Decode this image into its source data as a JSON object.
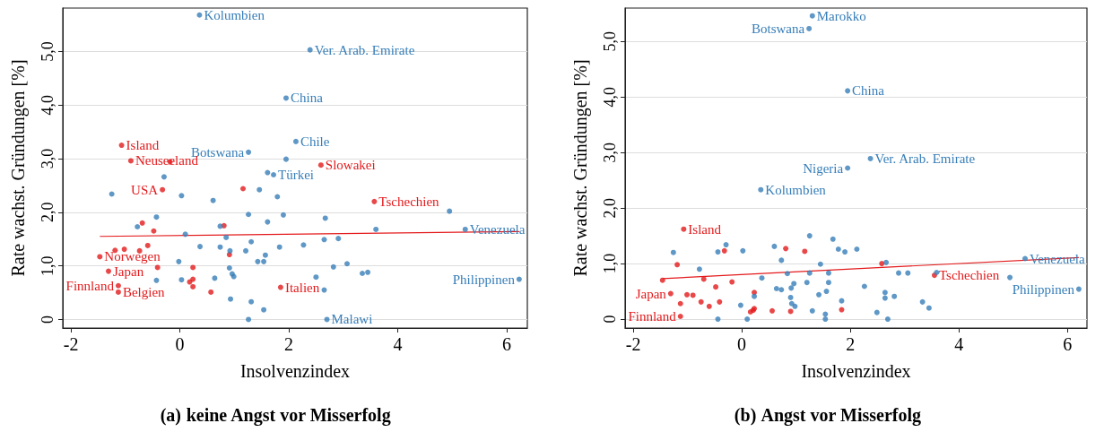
{
  "chart_data": [
    {
      "type": "scatter",
      "title": "(a) keine Angst vor Misserfolg",
      "xlabel": "Insolvenzindex",
      "ylabel": "Rate wachst. Gründungen [%]",
      "xlim": [
        -2.15,
        6.38
      ],
      "xticks": [
        -2,
        0,
        2,
        4,
        6
      ],
      "ylim": [
        -0.16,
        5.81
      ],
      "yticks": [
        0,
        {
          "value": 1,
          "label": "1,0"
        },
        {
          "value": 2,
          "label": "2,0"
        },
        {
          "value": 3,
          "label": "3,0"
        },
        {
          "value": 4,
          "label": "4,0"
        },
        {
          "value": 5,
          "label": "5,0"
        }
      ],
      "grid": "y",
      "marker": "circle",
      "series": [
        {
          "color": "#e41a1c",
          "x": [
            -1.07,
            -0.9,
            -0.18,
            -0.32,
            1.16,
            -0.69,
            -0.48,
            0.81,
            -0.59,
            -1.19,
            -1.02,
            -0.74,
            -1.47,
            0.91,
            -1.31,
            -0.41,
            0.24,
            -1.13,
            -1.13,
            0.18,
            0.24,
            0.24,
            0.57,
            1.85,
            2.59,
            3.57
          ],
          "values": [
            3.25,
            2.96,
            2.94,
            2.42,
            2.44,
            1.8,
            1.65,
            1.75,
            1.38,
            1.29,
            1.31,
            1.28,
            1.17,
            1.21,
            0.9,
            0.97,
            0.97,
            0.63,
            0.51,
            0.7,
            0.75,
            0.61,
            0.51,
            0.6,
            2.88,
            2.2
          ]
        },
        {
          "color": "#377eb8",
          "x": [
            0.36,
            1.95,
            2.13,
            1.26,
            1.95,
            1.61,
            1.72,
            -0.29,
            -1.25,
            0.03,
            0.61,
            1.46,
            1.79,
            1.26,
            1.9,
            -0.43,
            1.61,
            -0.78,
            0.74,
            0.1,
            0.85,
            1.31,
            0.37,
            0.74,
            0.92,
            1.21,
            1.83,
            2.27,
            1.57,
            1.43,
            1.54,
            -0.02,
            0.91,
            0.96,
            0.99,
            -0.43,
            0.03,
            0.64,
            0.93,
            1.31,
            1.54,
            1.26,
            2.39,
            2.67,
            2.65,
            2.91,
            3.6,
            4.95,
            5.24,
            2.82,
            3.07,
            3.35,
            3.45,
            2.5,
            2.65,
            2.7,
            6.23
          ],
          "values": [
            5.68,
            4.13,
            3.32,
            3.12,
            2.99,
            2.74,
            2.7,
            2.66,
            2.34,
            2.31,
            2.22,
            2.42,
            2.29,
            1.96,
            1.95,
            1.91,
            1.82,
            1.73,
            1.74,
            1.59,
            1.53,
            1.45,
            1.36,
            1.35,
            1.28,
            1.28,
            1.35,
            1.39,
            1.2,
            1.08,
            1.08,
            1.08,
            0.96,
            0.85,
            0.8,
            0.73,
            0.74,
            0.77,
            0.38,
            0.33,
            0.18,
            0,
            5.03,
            1.89,
            1.49,
            1.51,
            1.68,
            2.02,
            1.68,
            0.98,
            1.04,
            0.86,
            0.88,
            0.79,
            0.55,
            0,
            0.75
          ]
        },
        {
          "type": "line",
          "color": "#e41a1c",
          "marker": "none",
          "x": [
            -1.47,
            6.23
          ],
          "values": [
            1.55,
            1.64
          ]
        }
      ],
      "annotations": [
        {
          "text": "Kolumbien",
          "x": 0.36,
          "y": 5.68
        },
        {
          "text": "Ver. Arab. Emirate",
          "x": 2.39,
          "y": 5.03
        },
        {
          "text": "China",
          "x": 1.95,
          "y": 4.13
        },
        {
          "text": "Chile",
          "x": 2.13,
          "y": 3.32
        },
        {
          "text": "Botswana",
          "x": 1.26,
          "y": 3.12
        },
        {
          "text": "Türkei",
          "x": 1.72,
          "y": 2.7
        },
        {
          "text": "Island",
          "x": -1.07,
          "y": 3.25
        },
        {
          "text": "Neuseeland",
          "x": -0.9,
          "y": 2.96
        },
        {
          "text": "USA",
          "x": -0.32,
          "y": 2.42
        },
        {
          "text": "Slowakei",
          "x": 2.59,
          "y": 2.88
        },
        {
          "text": "Tschechien",
          "x": 3.57,
          "y": 2.2
        },
        {
          "text": "Venezuela",
          "x": 5.24,
          "y": 1.68
        },
        {
          "text": "Norwegen",
          "x": -1.47,
          "y": 1.17
        },
        {
          "text": "Japan",
          "x": -1.31,
          "y": 0.9
        },
        {
          "text": "Finnland",
          "x": -1.13,
          "y": 0.63
        },
        {
          "text": "Belgien",
          "x": -1.13,
          "y": 0.51
        },
        {
          "text": "Italien",
          "x": 1.85,
          "y": 0.6
        },
        {
          "text": "Philippinen",
          "x": 6.23,
          "y": 0.75
        },
        {
          "text": "Malawi",
          "x": 2.7,
          "y": 0
        }
      ]
    },
    {
      "type": "scatter",
      "title": "(b) Angst vor Misserfolg",
      "xlabel": "Insolvenzindex",
      "ylabel": "Rate wachst. Gründungen [%]",
      "xlim": [
        -2.15,
        6.36
      ],
      "xticks": [
        -2,
        0,
        2,
        4,
        6
      ],
      "ylim": [
        -0.16,
        5.6
      ],
      "yticks": [
        0,
        {
          "value": 1,
          "label": "1,0"
        },
        {
          "value": 2,
          "label": "2,0"
        },
        {
          "value": 3,
          "label": "3,0"
        },
        {
          "value": 4,
          "label": "4,0"
        },
        {
          "value": 5,
          "label": "5,0"
        }
      ],
      "grid": "y",
      "marker": "circle",
      "series": [
        {
          "color": "#e41a1c",
          "x": [
            -1.07,
            -1.19,
            -1.46,
            -1.31,
            -1.13,
            -1.13,
            -1.01,
            -0.9,
            -0.7,
            -0.75,
            -0.6,
            -0.48,
            -0.41,
            -0.32,
            -0.18,
            0.23,
            0.16,
            0.21,
            0.23,
            0.56,
            0.81,
            0.9,
            1.16,
            1.84,
            2.58,
            3.55
          ],
          "values": [
            1.62,
            0.98,
            0.7,
            0.46,
            0.28,
            0.05,
            0.44,
            0.43,
            0.72,
            0.31,
            0.23,
            0.58,
            0.31,
            1.23,
            0.67,
            0.48,
            0.13,
            0.16,
            0.19,
            0.15,
            1.27,
            0.14,
            1.22,
            0.17,
            1,
            0.79
          ]
        },
        {
          "color": "#377eb8",
          "x": [
            1.3,
            1.24,
            1.95,
            1.95,
            2.37,
            0.35,
            -1.26,
            -0.78,
            -0.44,
            -0.29,
            0.02,
            0.37,
            -0.02,
            -0.44,
            0.1,
            0.23,
            0.6,
            0.64,
            0.73,
            0.73,
            0.84,
            0.91,
            0.9,
            0.92,
            0.96,
            0.98,
            1.2,
            1.25,
            1.25,
            1.3,
            1.45,
            1.42,
            1.56,
            1.6,
            1.6,
            1.54,
            1.54,
            1.68,
            1.78,
            1.9,
            1.84,
            2.12,
            2.66,
            2.26,
            2.64,
            2.64,
            2.81,
            2.49,
            2.69,
            2.89,
            3.06,
            3.33,
            3.45,
            3.59,
            4.94,
            5.22,
            6.21
          ],
          "values": [
            5.46,
            5.23,
            4.11,
            2.72,
            2.89,
            2.33,
            1.2,
            0.9,
            1.21,
            1.34,
            1.23,
            0.74,
            0.25,
            0,
            0,
            0.41,
            1.31,
            0.55,
            1.06,
            0.53,
            0.82,
            0.56,
            0.39,
            0.28,
            0.64,
            0.23,
            0.66,
            0.83,
            1.5,
            0.15,
            0.99,
            0.44,
            0.5,
            0.83,
            0.66,
            0.09,
            0,
            1.44,
            1.26,
            1.21,
            0.33,
            1.26,
            1.02,
            0.59,
            0.48,
            0.38,
            0.41,
            0.12,
            0,
            0.83,
            0.83,
            0.31,
            0.2,
            0.84,
            0.75,
            1.09,
            0.54
          ]
        },
        {
          "type": "line",
          "color": "#e41a1c",
          "marker": "none",
          "x": [
            -1.46,
            6.21
          ],
          "values": [
            0.73,
            1.11
          ]
        }
      ],
      "annotations": [
        {
          "text": "Marokko",
          "x": 1.3,
          "y": 5.46
        },
        {
          "text": "Botswana",
          "x": 1.24,
          "y": 5.23
        },
        {
          "text": "China",
          "x": 1.95,
          "y": 4.11
        },
        {
          "text": "Ver. Arab. Emirate",
          "x": 2.37,
          "y": 2.89
        },
        {
          "text": "Nigeria",
          "x": 1.95,
          "y": 2.72
        },
        {
          "text": "Kolumbien",
          "x": 0.35,
          "y": 2.33
        },
        {
          "text": "Island",
          "x": -1.07,
          "y": 1.62
        },
        {
          "text": "Venezuela",
          "x": 5.22,
          "y": 1.09
        },
        {
          "text": "Tschechien",
          "x": 3.55,
          "y": 0.79
        },
        {
          "text": "Philippinen",
          "x": 6.21,
          "y": 0.54
        },
        {
          "text": "Japan",
          "x": -1.31,
          "y": 0.46
        },
        {
          "text": "Finnland",
          "x": -1.13,
          "y": 0.05
        }
      ]
    }
  ]
}
